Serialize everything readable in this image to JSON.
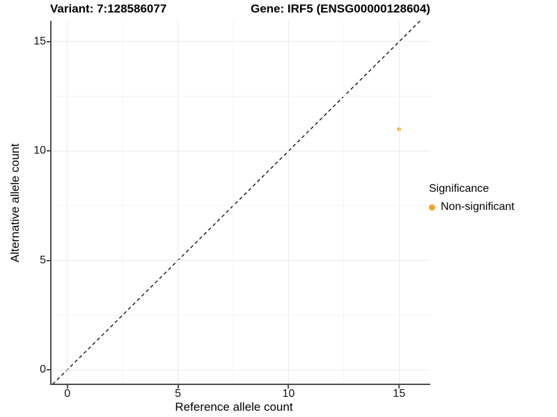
{
  "figure": {
    "background": "#ffffff"
  },
  "chart_data": {
    "type": "scatter",
    "title_left": "Variant: 7:128586077",
    "title_right": "Gene: IRF5 (ENSG00000128604)",
    "xlabel": "Reference allele count",
    "ylabel": "Alternative allele count",
    "xlim": [
      -0.715,
      16.41
    ],
    "ylim": [
      -0.667,
      15.953
    ],
    "xticks": [
      0,
      5,
      10,
      15
    ],
    "yticks": [
      0,
      5,
      10,
      15
    ],
    "x_minor_ticks": [
      2.5,
      7.5,
      12.5
    ],
    "y_minor_ticks": [
      2.5,
      7.5,
      12.5
    ],
    "grid": true,
    "legend_position": "right",
    "identity_line": {
      "slope": 1,
      "intercept": 0,
      "style": "dashed",
      "color": "#000000"
    },
    "series": [
      {
        "name": "Non-significant",
        "color": "#F8A02F",
        "points": [
          {
            "x": 15,
            "y": 11
          }
        ]
      }
    ],
    "legend": {
      "title": "Significance",
      "items": [
        {
          "label": "Non-significant",
          "color": "#F8A02F"
        }
      ]
    },
    "colors": {
      "axis_line": "#4d4d4d",
      "tick_mark": "#4d4d4d",
      "grid_major": "#ebebeb",
      "grid_minor": "#f5f5f5",
      "text": "#000000",
      "point": "#F8A02F"
    }
  }
}
